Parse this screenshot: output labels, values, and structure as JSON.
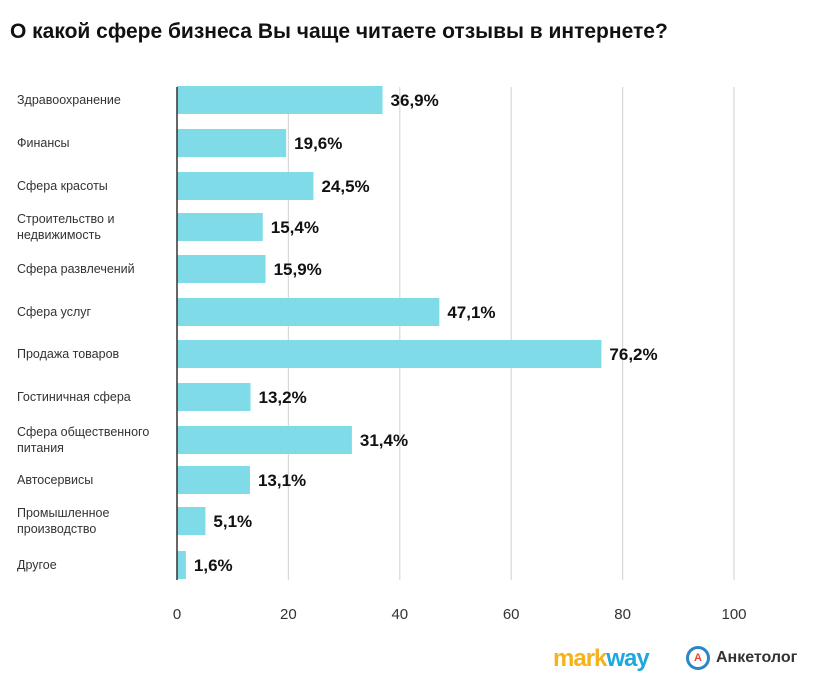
{
  "chart_data": {
    "type": "bar",
    "orientation": "horizontal",
    "title": "О какой сфере бизнеса Вы чаще читаете отзывы  в интернете?",
    "categories": [
      [
        "Здравоохранение"
      ],
      [
        "Финансы"
      ],
      [
        "Сфера красоты"
      ],
      [
        "Строительство и",
        "недвижимость"
      ],
      [
        "Сфера развлечений"
      ],
      [
        "Сфера услуг"
      ],
      [
        "Продажа товаров"
      ],
      [
        "Гостиничная сфера"
      ],
      [
        "Сфера общественного",
        "питания"
      ],
      [
        "Автосервисы"
      ],
      [
        "Промышленное",
        "производство"
      ],
      [
        "Другое"
      ]
    ],
    "values": [
      36.9,
      19.6,
      24.5,
      15.4,
      15.9,
      47.1,
      76.2,
      13.2,
      31.4,
      13.1,
      5.1,
      1.6
    ],
    "value_labels": [
      "36,9%",
      "19,6%",
      "24,5%",
      "15,4%",
      "15,9%",
      "47,1%",
      "76,2%",
      "13,2%",
      "31,4%",
      "13,1%",
      "5,1%",
      "1,6%"
    ],
    "xticks": [
      "0",
      "20",
      "40",
      "60",
      "80",
      "100"
    ],
    "xlim": [
      0,
      100
    ],
    "grid": true,
    "bar_color": "#80dbe9",
    "xlabel": "",
    "ylabel": ""
  },
  "logos": {
    "markway_a": "mark",
    "markway_b": "way",
    "anketolog": "Анкетолог",
    "anketolog_icon": "А"
  }
}
